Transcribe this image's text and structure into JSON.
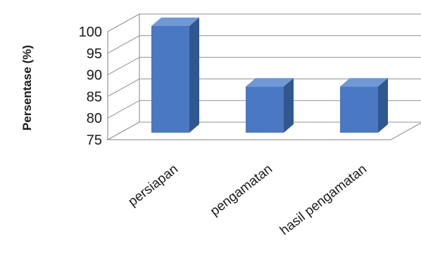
{
  "chart_data": {
    "type": "bar",
    "view": "3d-column",
    "title": "",
    "xlabel": "",
    "ylabel": "Persentase (%)",
    "ylim": [
      75,
      100
    ],
    "yticks": [
      75,
      80,
      85,
      90,
      95,
      100
    ],
    "grid": true,
    "legend": "none",
    "categories": [
      "persiapan",
      "pengamatan",
      "hasil pengamatan"
    ],
    "series": [
      {
        "values": [
          100,
          86,
          86
        ]
      }
    ],
    "colors": {
      "bar_front": "#4a78c2",
      "bar_side": "#2f5790",
      "bar_top": "#6f98d6",
      "grid": "#909090",
      "axis": "#808080"
    }
  }
}
